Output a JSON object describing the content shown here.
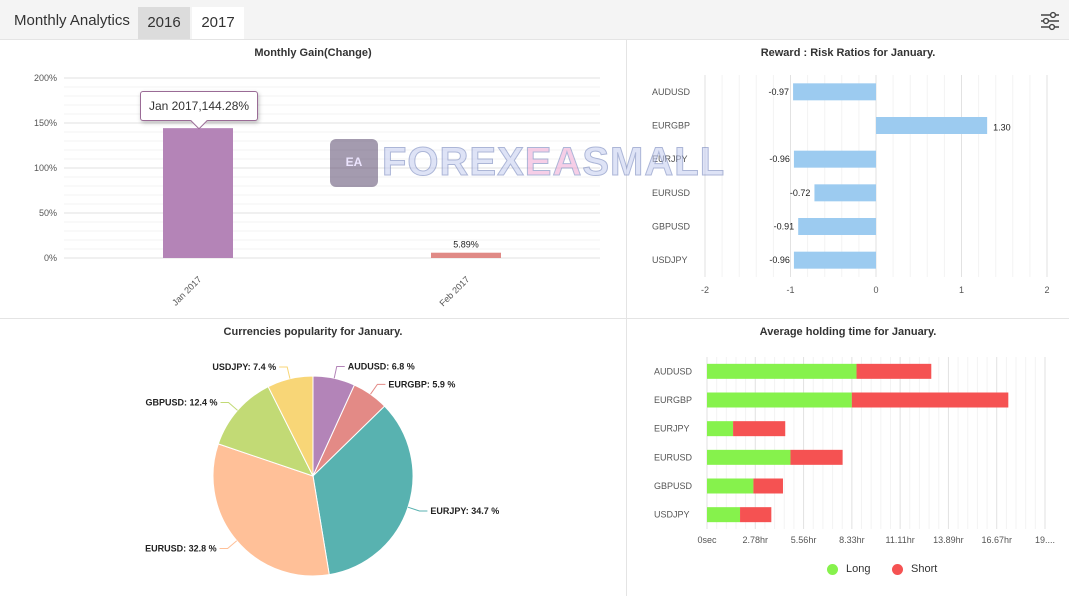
{
  "header": {
    "title": "Monthly Analytics",
    "tabs": [
      "2016",
      "2017"
    ],
    "active_tab": "2017"
  },
  "watermark": {
    "logo_text": "EA",
    "text_a": "FOREX",
    "text_b": "EA",
    "text_c": "SMALL"
  },
  "chart_data": [
    {
      "type": "bar",
      "title": "Monthly Gain(Change)",
      "categories": [
        "Jan 2017",
        "Feb 2017"
      ],
      "values": [
        144.28,
        5.89
      ],
      "value_labels": [
        "",
        "5.89%"
      ],
      "colors": [
        "#b484b7",
        "#e08a86"
      ],
      "yticks": [
        "0%",
        "50%",
        "100%",
        "150%",
        "200%"
      ],
      "ylim": [
        0,
        200
      ],
      "grid": true,
      "tooltip": "Jan 2017,144.28%"
    },
    {
      "type": "bar",
      "orientation": "horizontal",
      "title": "Reward : Risk Ratios for January.",
      "categories": [
        "AUDUSD",
        "EURGBP",
        "EURJPY",
        "EURUSD",
        "GBPUSD",
        "USDJPY"
      ],
      "values": [
        -0.97,
        1.3,
        -0.96,
        -0.72,
        -0.91,
        -0.96
      ],
      "value_labels": [
        "-0.97",
        "1.30",
        "-0.96",
        "-0.72",
        "-0.91",
        "-0.96"
      ],
      "color": "#9ccbf0",
      "xticks": [
        "-2",
        "-1",
        "0",
        "1",
        "2"
      ],
      "xlim": [
        -2,
        2
      ],
      "grid": true
    },
    {
      "type": "pie",
      "title": "Currencies popularity for January.",
      "slices": [
        {
          "name": "AUDUSD",
          "value": 6.8,
          "label": "AUDUSD: 6.8 %",
          "color": "#b384b8"
        },
        {
          "name": "EURGBP",
          "value": 5.9,
          "label": "EURGBP: 5.9 %",
          "color": "#e38a86"
        },
        {
          "name": "EURJPY",
          "value": 34.7,
          "label": "EURJPY: 34.7 %",
          "color": "#58b2b0"
        },
        {
          "name": "EURUSD",
          "value": 32.8,
          "label": "EURUSD: 32.8 %",
          "color": "#ffc098"
        },
        {
          "name": "GBPUSD",
          "value": 12.4,
          "label": "GBPUSD: 12.4 %",
          "color": "#c2da75"
        },
        {
          "name": "USDJPY",
          "value": 7.4,
          "label": "USDJPY: 7.4 %",
          "color": "#f8d677"
        }
      ]
    },
    {
      "type": "bar",
      "orientation": "horizontal",
      "stacked": true,
      "title": "Average holding time for January.",
      "categories": [
        "AUDUSD",
        "EURGBP",
        "EURJPY",
        "EURUSD",
        "GBPUSD",
        "USDJPY"
      ],
      "series": [
        {
          "name": "Long",
          "color": "#86f24c",
          "values": [
            8.6,
            8.33,
            1.5,
            4.8,
            2.67,
            1.9
          ]
        },
        {
          "name": "Short",
          "color": "#f55252",
          "values": [
            4.3,
            9.0,
            3.0,
            3.0,
            1.7,
            1.8
          ]
        }
      ],
      "xticks": [
        "0sec",
        "2.78hr",
        "5.56hr",
        "8.33hr",
        "11.11hr",
        "13.89hr",
        "16.67hr",
        "19...."
      ],
      "xlim_hours": [
        0,
        19.44
      ],
      "grid": true,
      "legend_position": "bottom-center"
    }
  ]
}
